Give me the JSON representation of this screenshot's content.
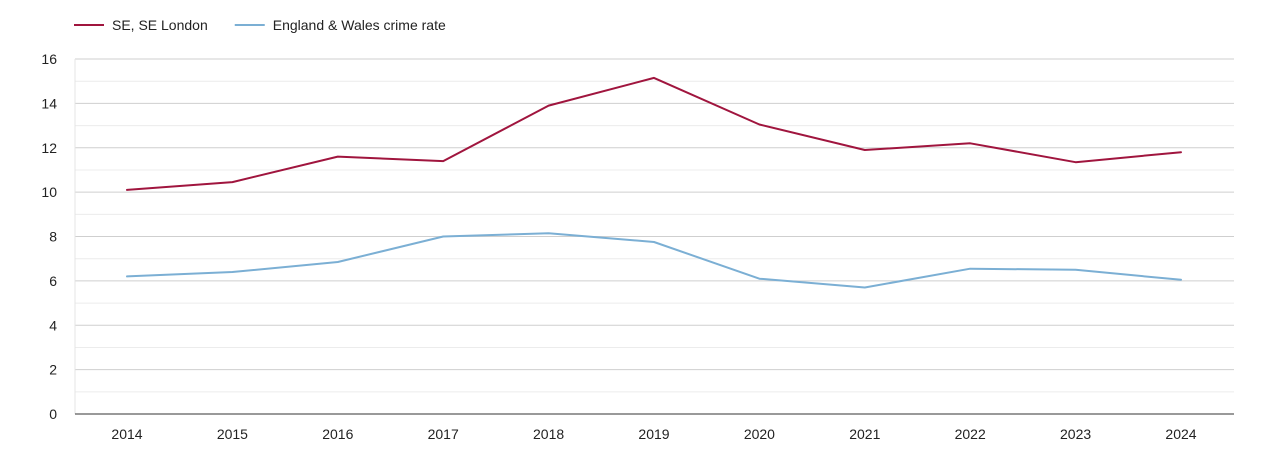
{
  "chart_data": {
    "type": "line",
    "title": "",
    "xlabel": "",
    "ylabel": "",
    "x": [
      "2014",
      "2015",
      "2016",
      "2017",
      "2018",
      "2019",
      "2020",
      "2021",
      "2022",
      "2023",
      "2024"
    ],
    "ylim": [
      0,
      16
    ],
    "yticks": [
      "0",
      "2",
      "4",
      "6",
      "8",
      "10",
      "12",
      "14",
      "16"
    ],
    "grid": true,
    "legend_position": "top-left",
    "series": [
      {
        "name": "SE, SE London",
        "color": "#a0153e",
        "values": [
          10.1,
          10.45,
          11.6,
          11.4,
          13.9,
          15.15,
          13.05,
          11.9,
          12.2,
          11.35,
          11.8
        ]
      },
      {
        "name": "England & Wales crime rate",
        "color": "#7bafd4",
        "values": [
          6.2,
          6.4,
          6.85,
          8.0,
          8.15,
          7.75,
          6.1,
          5.7,
          6.55,
          6.5,
          6.05
        ]
      }
    ]
  }
}
